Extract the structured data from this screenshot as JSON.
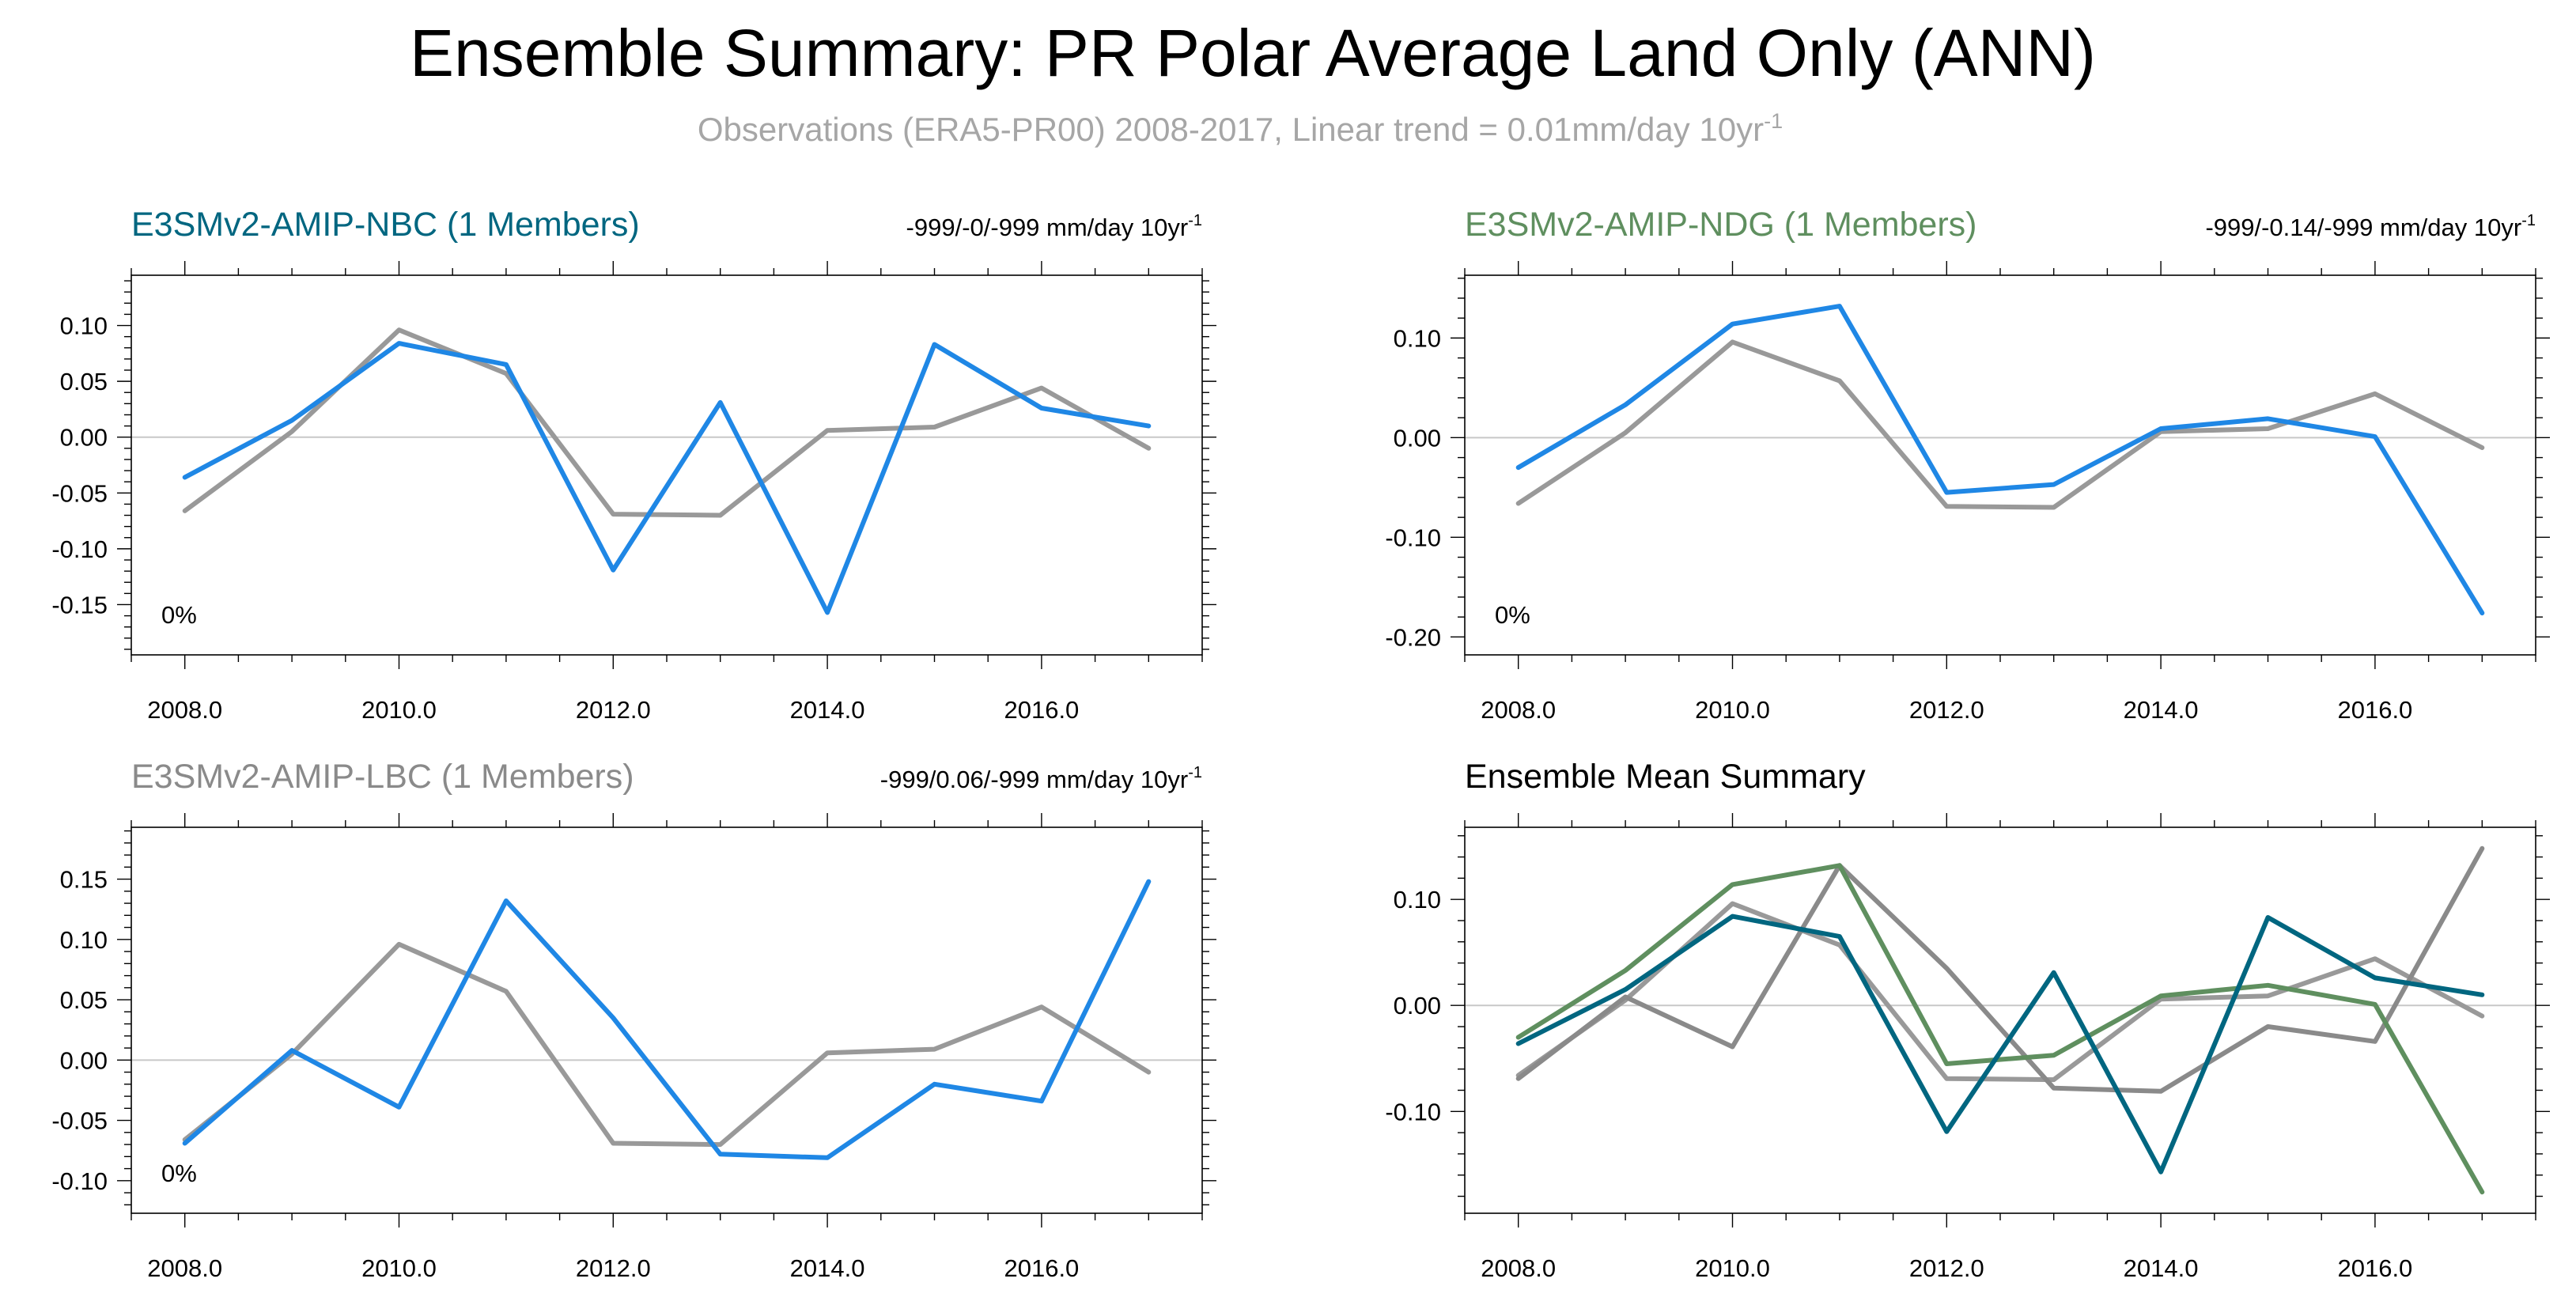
{
  "title": "Ensemble Summary: PR Polar Average Land Only (ANN)",
  "subtitle": {
    "text": "Observations (ERA5-PR00) 2008-2017, Linear trend = 0.01mm/day 10yr",
    "sup": "-1"
  },
  "colors": {
    "obs": "#999999",
    "model": "#1f87e5",
    "nbc": "#006680",
    "ndg": "#5f8f5f",
    "lbc": "#8a8a8a",
    "title": "#000000",
    "subtitle": "#a6a6a6",
    "zero_line": "#c8c8c8",
    "frame": "#000000"
  },
  "chart_data": [
    {
      "type": "line",
      "title": "E3SMv2-AMIP-NBC (1 Members)",
      "title_color": "#006680",
      "trend_label": "-999/-0/-999 mm/day 10yr",
      "trend_sup": "-1",
      "annotation": "0%",
      "x": [
        2008,
        2009,
        2010,
        2011,
        2012,
        2013,
        2014,
        2015,
        2016,
        2017
      ],
      "x_tick_labels": [
        "2008.0",
        "2010.0",
        "2012.0",
        "2014.0",
        "2016.0"
      ],
      "y_tick_labels": [
        "0.10",
        "0.05",
        "0.00",
        "-0.05",
        "-0.10",
        "-0.15"
      ],
      "xlim": [
        2007.5,
        2017.5
      ],
      "ylim": [
        -0.195,
        0.145
      ],
      "zero_line": true,
      "grid": false,
      "series": [
        {
          "color_key": "obs",
          "values": [
            -0.066,
            0.005,
            0.096,
            0.057,
            -0.069,
            -0.07,
            0.006,
            0.009,
            0.044,
            -0.01
          ]
        },
        {
          "color_key": "model",
          "values": [
            -0.036,
            0.015,
            0.084,
            0.065,
            -0.119,
            0.031,
            -0.157,
            0.083,
            0.026,
            0.01
          ]
        }
      ]
    },
    {
      "type": "line",
      "title": "E3SMv2-AMIP-NDG (1 Members)",
      "title_color": "#5f8f5f",
      "trend_label": "-999/-0.14/-999 mm/day 10yr",
      "trend_sup": "-1",
      "annotation": "0%",
      "x": [
        2008,
        2009,
        2010,
        2011,
        2012,
        2013,
        2014,
        2015,
        2016,
        2017
      ],
      "x_tick_labels": [
        "2008.0",
        "2010.0",
        "2012.0",
        "2014.0",
        "2016.0"
      ],
      "y_tick_labels": [
        "0.10",
        "0.00",
        "-0.10",
        "-0.20"
      ],
      "xlim": [
        2007.5,
        2017.5
      ],
      "ylim": [
        -0.218,
        0.163
      ],
      "zero_line": true,
      "grid": false,
      "series": [
        {
          "color_key": "obs",
          "values": [
            -0.066,
            0.005,
            0.096,
            0.057,
            -0.069,
            -0.07,
            0.006,
            0.009,
            0.044,
            -0.01
          ]
        },
        {
          "color_key": "model",
          "values": [
            -0.03,
            0.033,
            0.114,
            0.132,
            -0.055,
            -0.047,
            0.009,
            0.019,
            0.001,
            -0.176
          ]
        }
      ]
    },
    {
      "type": "line",
      "title": "E3SMv2-AMIP-LBC (1 Members)",
      "title_color": "#8a8a8a",
      "trend_label": "-999/0.06/-999 mm/day 10yr",
      "trend_sup": "-1",
      "annotation": "0%",
      "x": [
        2008,
        2009,
        2010,
        2011,
        2012,
        2013,
        2014,
        2015,
        2016,
        2017
      ],
      "x_tick_labels": [
        "2008.0",
        "2010.0",
        "2012.0",
        "2014.0",
        "2016.0"
      ],
      "y_tick_labels": [
        "0.15",
        "0.10",
        "0.05",
        "0.00",
        "-0.05",
        "-0.10"
      ],
      "xlim": [
        2007.5,
        2017.5
      ],
      "ylim": [
        -0.127,
        0.193
      ],
      "zero_line": true,
      "grid": false,
      "series": [
        {
          "color_key": "obs",
          "values": [
            -0.066,
            0.005,
            0.096,
            0.057,
            -0.069,
            -0.07,
            0.006,
            0.009,
            0.044,
            -0.01
          ]
        },
        {
          "color_key": "model",
          "values": [
            -0.069,
            0.008,
            -0.039,
            0.132,
            0.035,
            -0.078,
            -0.081,
            -0.02,
            -0.034,
            0.148
          ]
        }
      ]
    },
    {
      "type": "line",
      "title": "Ensemble Mean Summary",
      "title_color": "#000000",
      "trend_label": "",
      "trend_sup": "",
      "annotation": "",
      "x": [
        2008,
        2009,
        2010,
        2011,
        2012,
        2013,
        2014,
        2015,
        2016,
        2017
      ],
      "x_tick_labels": [
        "2008.0",
        "2010.0",
        "2012.0",
        "2014.0",
        "2016.0"
      ],
      "y_tick_labels": [
        "0.10",
        "0.00",
        "-0.10"
      ],
      "xlim": [
        2007.5,
        2017.5
      ],
      "ylim": [
        -0.196,
        0.168
      ],
      "zero_line": true,
      "grid": false,
      "series": [
        {
          "color_key": "obs",
          "values": [
            -0.066,
            0.005,
            0.096,
            0.057,
            -0.069,
            -0.07,
            0.006,
            0.009,
            0.044,
            -0.01
          ]
        },
        {
          "color_key": "lbc",
          "values": [
            -0.069,
            0.008,
            -0.039,
            0.132,
            0.035,
            -0.078,
            -0.081,
            -0.02,
            -0.034,
            0.148
          ]
        },
        {
          "color_key": "ndg",
          "values": [
            -0.03,
            0.033,
            0.114,
            0.132,
            -0.055,
            -0.047,
            0.009,
            0.019,
            0.001,
            -0.176
          ]
        },
        {
          "color_key": "nbc",
          "values": [
            -0.036,
            0.015,
            0.084,
            0.065,
            -0.119,
            0.031,
            -0.157,
            0.083,
            0.026,
            0.01
          ]
        }
      ]
    }
  ]
}
